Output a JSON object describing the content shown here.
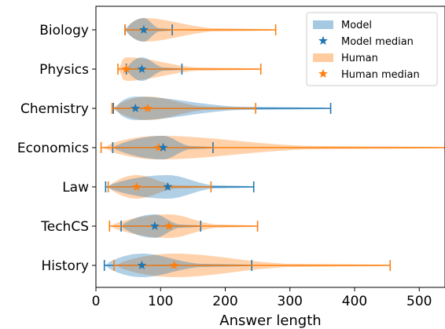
{
  "chart_data": {
    "type": "violin",
    "xlabel": "Answer length",
    "xlim": [
      0,
      540
    ],
    "x_ticks": [
      0,
      100,
      200,
      300,
      400,
      500
    ],
    "categories": [
      "Biology",
      "Physics",
      "Chemistry",
      "Economics",
      "Law",
      "TechCS",
      "History"
    ],
    "legend": {
      "placement": "upper-right",
      "entries": [
        "Model",
        "Model median",
        "Human",
        "Human median"
      ]
    },
    "series": [
      {
        "name": "Model",
        "color": "#1f77b4",
        "stats": [
          {
            "category": "Biology",
            "min": 45,
            "median": 74,
            "max": 118
          },
          {
            "category": "Physics",
            "min": 47,
            "median": 71,
            "max": 133
          },
          {
            "category": "Chemistry",
            "min": 27,
            "median": 61,
            "max": 363
          },
          {
            "category": "Economics",
            "min": 26,
            "median": 104,
            "max": 181
          },
          {
            "category": "Law",
            "min": 15,
            "median": 111,
            "max": 244
          },
          {
            "category": "TechCS",
            "min": 39,
            "median": 91,
            "max": 162
          },
          {
            "category": "History",
            "min": 13,
            "median": 71,
            "max": 241
          }
        ]
      },
      {
        "name": "Human",
        "color": "#ff7f0e",
        "stats": [
          {
            "category": "Biology",
            "min": 45,
            "median": 74,
            "max": 278
          },
          {
            "category": "Physics",
            "min": 34,
            "median": 47,
            "max": 255
          },
          {
            "category": "Chemistry",
            "min": 25,
            "median": 80,
            "max": 247
          },
          {
            "category": "Economics",
            "min": 8,
            "median": 97,
            "max": 540
          },
          {
            "category": "Law",
            "min": 19,
            "median": 63,
            "max": 178
          },
          {
            "category": "TechCS",
            "min": 21,
            "median": 113,
            "max": 250
          },
          {
            "category": "History",
            "min": 28,
            "median": 121,
            "max": 455
          }
        ]
      }
    ],
    "grid": false
  }
}
